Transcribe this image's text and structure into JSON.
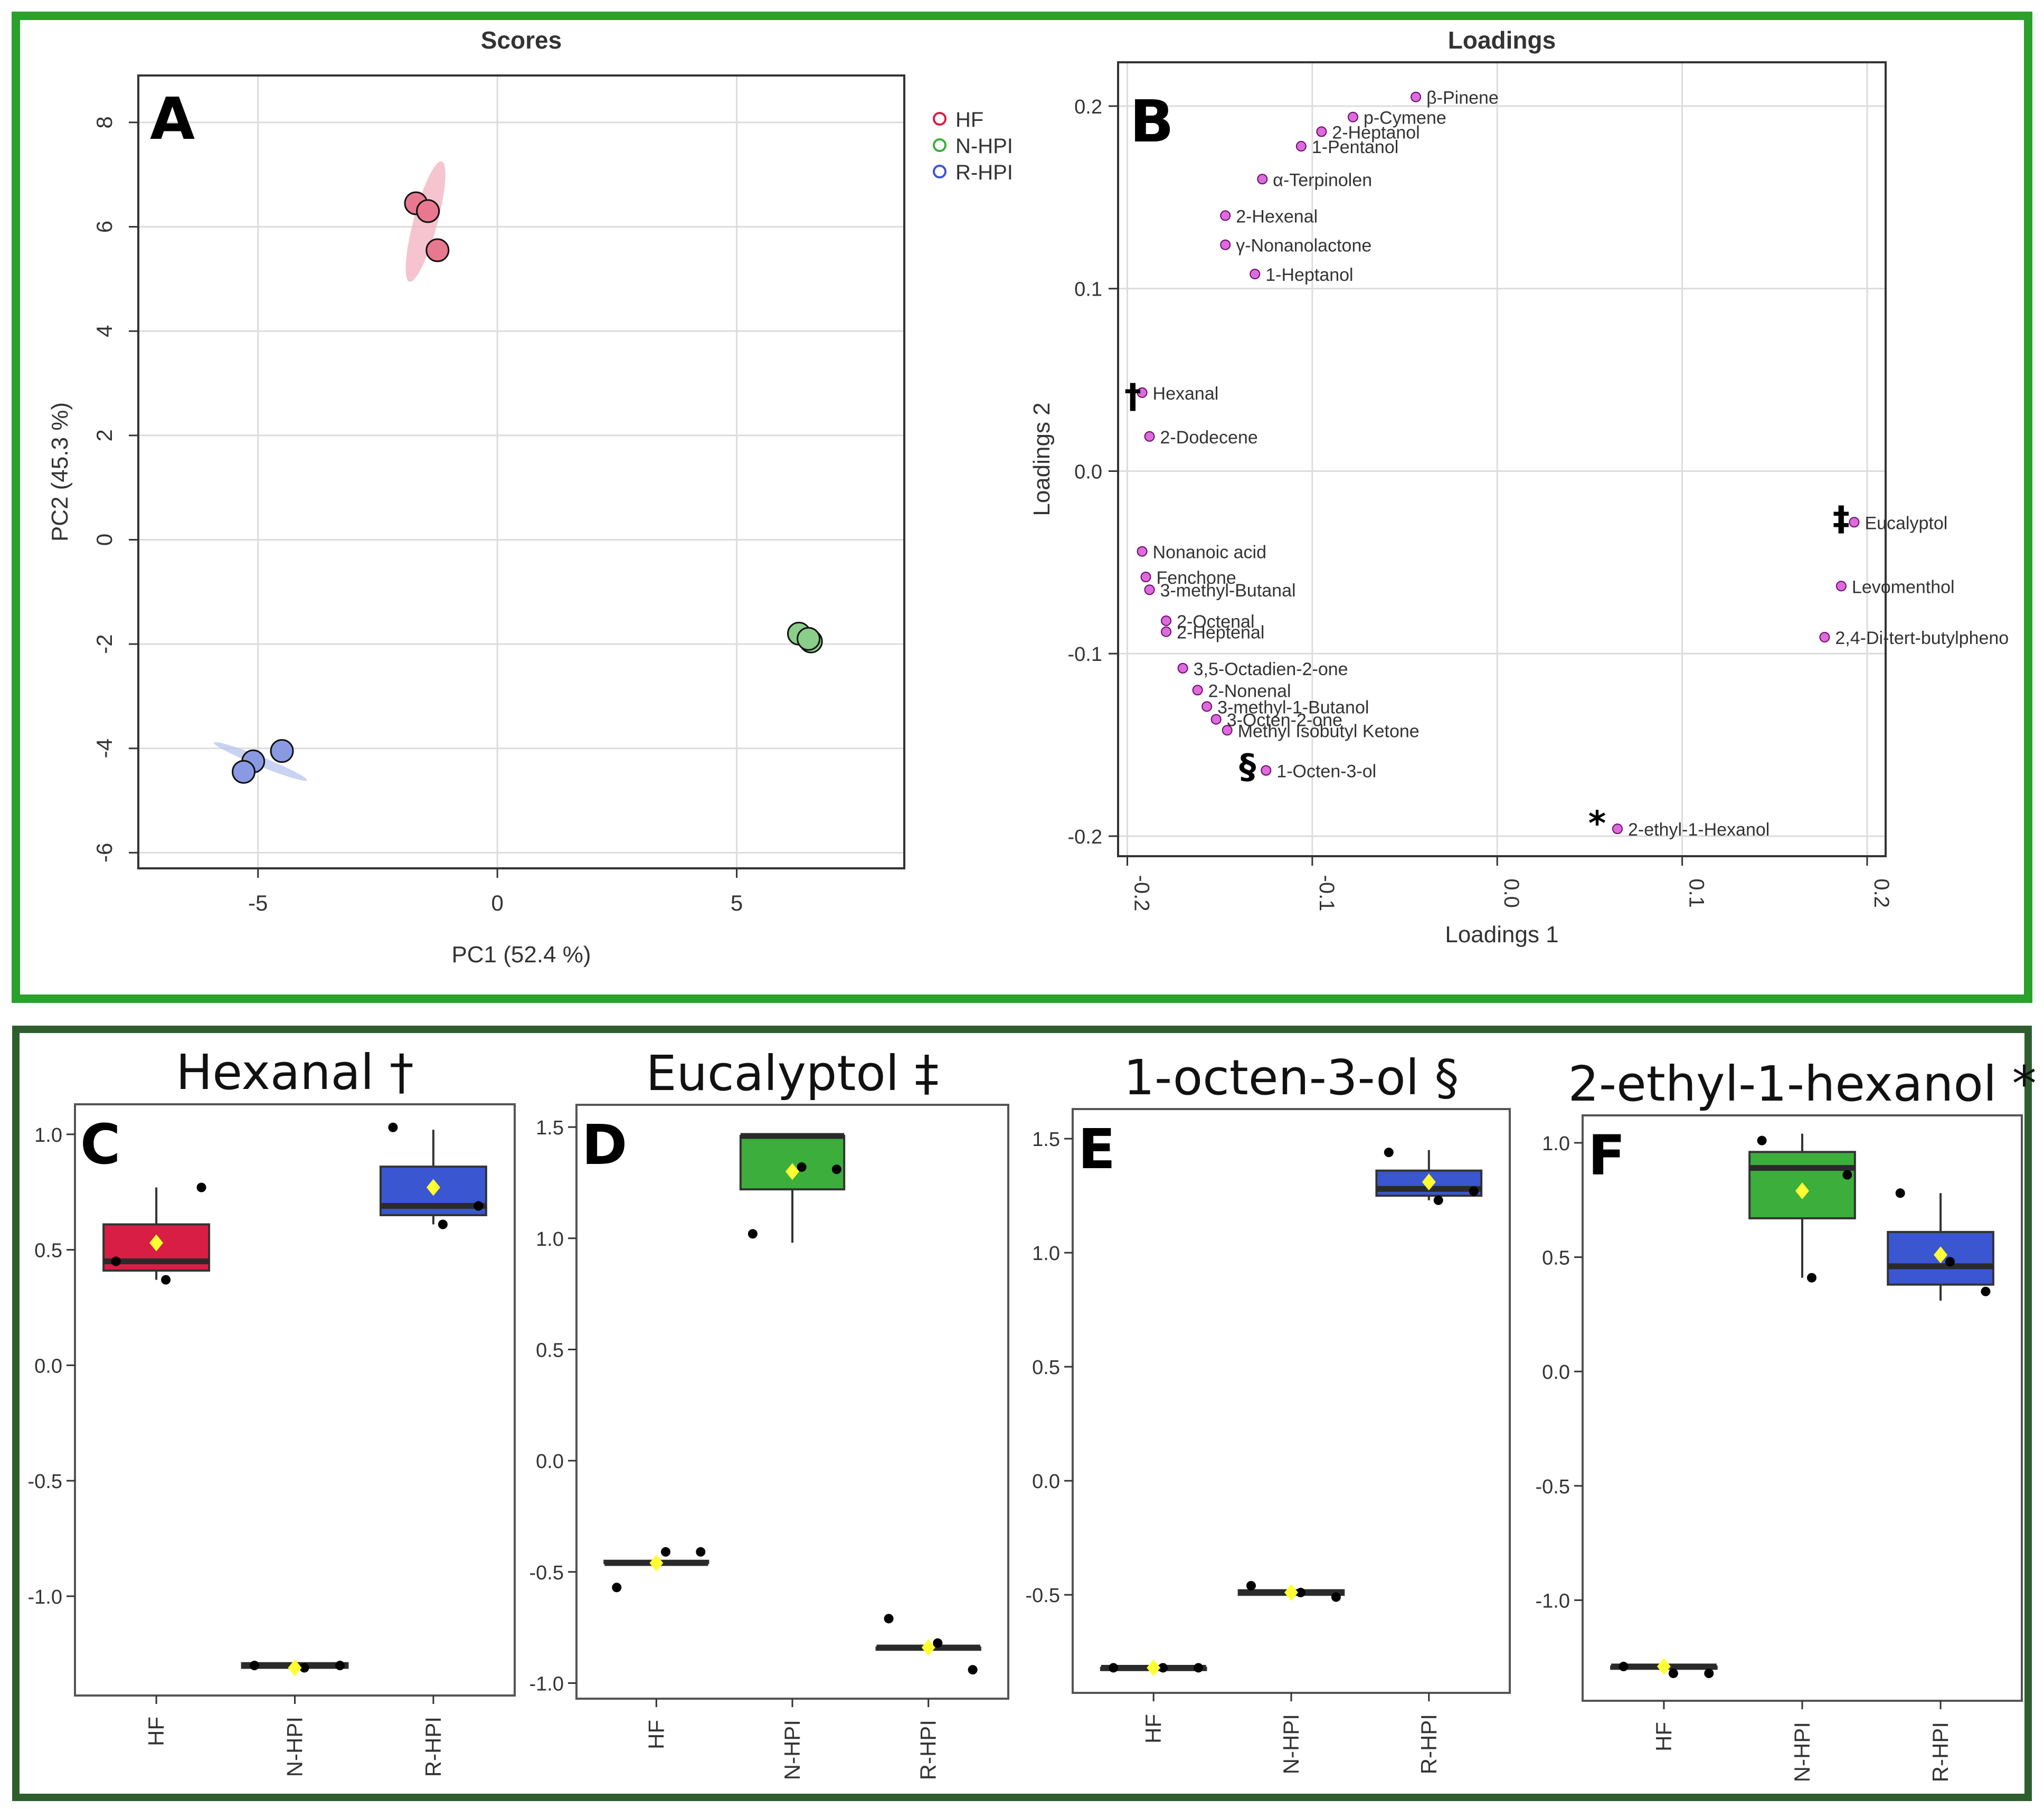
{
  "colors": {
    "HF": "#d81e45",
    "N-HPI": "#3cae3c",
    "R-HPI": "#3a56d0",
    "frame_top": "#2aa12a",
    "frame_bottom": "#2e5e2e",
    "loading_point": "#d13ad1",
    "loading_label": "#1a1a8c",
    "mean_marker": "#ffff33"
  },
  "chart_data": [
    {
      "panel": "A",
      "type": "scatter",
      "title": "Scores",
      "xlabel": "PC1 (52.4 %)",
      "ylabel": "PC2 (45.3 %)",
      "xlim": [
        -7.5,
        8.5
      ],
      "ylim": [
        -6.3,
        8.9
      ],
      "xticks": [
        -5,
        0,
        5
      ],
      "yticks": [
        -6,
        -4,
        -2,
        0,
        2,
        4,
        6,
        8
      ],
      "grid": true,
      "legend": {
        "position": "top-right",
        "entries": [
          "HF",
          "N-HPI",
          "R-HPI"
        ]
      },
      "series": [
        {
          "name": "HF",
          "points": [
            [
              -1.7,
              6.45
            ],
            [
              -1.45,
              6.3
            ],
            [
              -1.25,
              5.55
            ]
          ],
          "ellipse": {
            "cx": -1.5,
            "cy": 6.1,
            "rx": 1.3,
            "ry": 0.25,
            "angle": -75
          }
        },
        {
          "name": "N-HPI",
          "points": [
            [
              6.3,
              -1.8
            ],
            [
              6.55,
              -1.95
            ],
            [
              6.5,
              -1.9
            ]
          ],
          "ellipse": {
            "cx": 6.45,
            "cy": -1.88,
            "rx": 0.2,
            "ry": 0.08,
            "angle": -30
          }
        },
        {
          "name": "R-HPI",
          "points": [
            [
              -4.5,
              -4.05
            ],
            [
              -5.1,
              -4.25
            ],
            [
              -5.3,
              -4.45
            ]
          ],
          "ellipse": {
            "cx": -4.95,
            "cy": -4.25,
            "rx": 1.05,
            "ry": 0.1,
            "angle": 22
          }
        }
      ]
    },
    {
      "panel": "B",
      "type": "scatter",
      "title": "Loadings",
      "xlabel": "Loadings 1",
      "ylabel": "Loadings 2",
      "xlim": [
        -0.205,
        0.21
      ],
      "ylim": [
        -0.211,
        0.224
      ],
      "xticks": [
        -0.2,
        -0.1,
        0.0,
        0.1,
        0.2
      ],
      "xtick_labels": [
        "-0.2",
        "-0.1",
        "0.0",
        "0.1",
        "0.2"
      ],
      "yticks": [
        -0.2,
        -0.1,
        0.0,
        0.1,
        0.2
      ],
      "ytick_labels": [
        "-0.2",
        "-0.1",
        "0.0",
        "0.1",
        "0.2"
      ],
      "grid": true,
      "points": [
        {
          "label": "β-Pinene",
          "x": -0.044,
          "y": 0.205
        },
        {
          "label": "p-Cymene",
          "x": -0.078,
          "y": 0.194
        },
        {
          "label": "2-Heptanol",
          "x": -0.095,
          "y": 0.186
        },
        {
          "label": "1-Pentanol",
          "x": -0.106,
          "y": 0.178
        },
        {
          "label": "α-Terpinolen",
          "x": -0.127,
          "y": 0.16
        },
        {
          "label": "2-Hexenal",
          "x": -0.147,
          "y": 0.14
        },
        {
          "label": "γ-Nonanolactone",
          "x": -0.147,
          "y": 0.124
        },
        {
          "label": "1-Heptanol",
          "x": -0.131,
          "y": 0.108
        },
        {
          "label": "Hexanal",
          "x": -0.192,
          "y": 0.043
        },
        {
          "label": "2-Dodecene",
          "x": -0.188,
          "y": 0.019
        },
        {
          "label": "Eucalyptol",
          "x": 0.193,
          "y": -0.028
        },
        {
          "label": "Levomenthol",
          "x": 0.186,
          "y": -0.063
        },
        {
          "label": "2,4-Di-tert-butylpheno",
          "x": 0.177,
          "y": -0.091
        },
        {
          "label": "Nonanoic acid",
          "x": -0.192,
          "y": -0.044
        },
        {
          "label": "Fenchone",
          "x": -0.19,
          "y": -0.058
        },
        {
          "label": "3-methyl-Butanal",
          "x": -0.188,
          "y": -0.065
        },
        {
          "label": "2-Octenal",
          "x": -0.179,
          "y": -0.082
        },
        {
          "label": "2-Heptenal",
          "x": -0.179,
          "y": -0.088
        },
        {
          "label": "3,5-Octadien-2-one",
          "x": -0.17,
          "y": -0.108
        },
        {
          "label": "2-Nonenal",
          "x": -0.162,
          "y": -0.12
        },
        {
          "label": "3-methyl-1-Butanol",
          "x": -0.157,
          "y": -0.129
        },
        {
          "label": "3-Octen-2-one",
          "x": -0.152,
          "y": -0.136
        },
        {
          "label": "Methyl Isobutyl Ketone",
          "x": -0.146,
          "y": -0.142
        },
        {
          "label": "1-Octen-3-ol",
          "x": -0.125,
          "y": -0.164
        },
        {
          "label": "2-ethyl-1-Hexanol",
          "x": 0.065,
          "y": -0.196
        }
      ],
      "markers": [
        {
          "symbol": "†",
          "x": -0.197,
          "y": 0.041
        },
        {
          "symbol": "‡",
          "x": 0.186,
          "y": -0.026
        },
        {
          "symbol": "§",
          "x": -0.135,
          "y": -0.162
        },
        {
          "symbol": "*",
          "x": 0.054,
          "y": -0.193
        }
      ]
    },
    {
      "panel": "C",
      "type": "box",
      "title": "Hexanal †",
      "categories": [
        "HF",
        "N-HPI",
        "R-HPI"
      ],
      "ylim": [
        -1.43,
        1.13
      ],
      "yticks": [
        -1.0,
        -0.5,
        0.0,
        0.5,
        1.0
      ],
      "ytick_labels": [
        "-1.0",
        "-0.5",
        "0.0",
        "0.5",
        "1.0"
      ],
      "boxes": [
        {
          "q1": 0.41,
          "median": 0.45,
          "q3": 0.61,
          "whisker_low": 0.37,
          "whisker_high": 0.77,
          "mean": 0.53,
          "points": [
            0.45,
            0.37,
            0.77
          ]
        },
        {
          "q1": -1.31,
          "median": -1.3,
          "q3": -1.29,
          "whisker_low": -1.31,
          "whisker_high": -1.29,
          "mean": -1.31,
          "points": [
            -1.3,
            -1.31,
            -1.3
          ]
        },
        {
          "q1": 0.65,
          "median": 0.69,
          "q3": 0.86,
          "whisker_low": 0.61,
          "whisker_high": 1.02,
          "mean": 0.77,
          "points": [
            1.03,
            0.61,
            0.69
          ]
        }
      ]
    },
    {
      "panel": "D",
      "type": "box",
      "title": "Eucalyptol ‡",
      "categories": [
        "HF",
        "N-HPI",
        "R-HPI"
      ],
      "ylim": [
        -1.07,
        1.6
      ],
      "yticks": [
        -1.0,
        -0.5,
        0.0,
        0.5,
        1.0,
        1.5
      ],
      "ytick_labels": [
        "-1.0",
        "-0.5",
        "0.0",
        "0.5",
        "1.0",
        "1.5"
      ],
      "boxes": [
        {
          "q1": -0.46,
          "median": -0.46,
          "q3": -0.45,
          "whisker_low": -0.46,
          "whisker_high": -0.45,
          "mean": -0.46,
          "points": [
            -0.57,
            -0.41,
            -0.41
          ]
        },
        {
          "q1": 1.22,
          "median": 1.46,
          "q3": 1.46,
          "whisker_low": 0.98,
          "whisker_high": 1.46,
          "mean": 1.3,
          "points": [
            1.02,
            1.32,
            1.31
          ]
        },
        {
          "q1": -0.85,
          "median": -0.84,
          "q3": -0.84,
          "whisker_low": -0.85,
          "whisker_high": -0.84,
          "mean": -0.84,
          "points": [
            -0.71,
            -0.82,
            -0.94
          ]
        }
      ]
    },
    {
      "panel": "E",
      "type": "box",
      "title": "1-octen-3-ol §",
      "categories": [
        "HF",
        "N-HPI",
        "R-HPI"
      ],
      "ylim": [
        -0.93,
        1.63
      ],
      "yticks": [
        -0.5,
        0.0,
        0.5,
        1.0,
        1.5
      ],
      "ytick_labels": [
        "-0.5",
        "0.0",
        "0.5",
        "1.0",
        "1.5"
      ],
      "boxes": [
        {
          "q1": -0.83,
          "median": -0.82,
          "q3": -0.82,
          "whisker_low": -0.83,
          "whisker_high": -0.82,
          "mean": -0.82,
          "points": [
            -0.82,
            -0.82,
            -0.82
          ]
        },
        {
          "q1": -0.5,
          "median": -0.49,
          "q3": -0.48,
          "whisker_low": -0.5,
          "whisker_high": -0.48,
          "mean": -0.49,
          "points": [
            -0.46,
            -0.49,
            -0.51
          ]
        },
        {
          "q1": 1.25,
          "median": 1.28,
          "q3": 1.36,
          "whisker_low": 1.23,
          "whisker_high": 1.45,
          "mean": 1.31,
          "points": [
            1.44,
            1.23,
            1.27
          ]
        }
      ]
    },
    {
      "panel": "F",
      "type": "box",
      "title": "2-ethyl-1-hexanol *",
      "categories": [
        "HF",
        "N-HPI",
        "R-HPI"
      ],
      "ylim": [
        -1.44,
        1.12
      ],
      "yticks": [
        -1.0,
        -0.5,
        0.0,
        0.5,
        1.0
      ],
      "ytick_labels": [
        "-1.0",
        "-0.5",
        "0.0",
        "0.5",
        "1.0"
      ],
      "boxes": [
        {
          "q1": -1.3,
          "median": -1.29,
          "q3": -1.29,
          "whisker_low": -1.3,
          "whisker_high": -1.29,
          "mean": -1.29,
          "points": [
            -1.29,
            -1.32,
            -1.32
          ]
        },
        {
          "q1": 0.67,
          "median": 0.89,
          "q3": 0.96,
          "whisker_low": 0.41,
          "whisker_high": 1.04,
          "mean": 0.79,
          "points": [
            1.01,
            0.41,
            0.86
          ]
        },
        {
          "q1": 0.38,
          "median": 0.46,
          "q3": 0.61,
          "whisker_low": 0.31,
          "whisker_high": 0.78,
          "mean": 0.51,
          "points": [
            0.78,
            0.48,
            0.35
          ]
        }
      ]
    }
  ]
}
